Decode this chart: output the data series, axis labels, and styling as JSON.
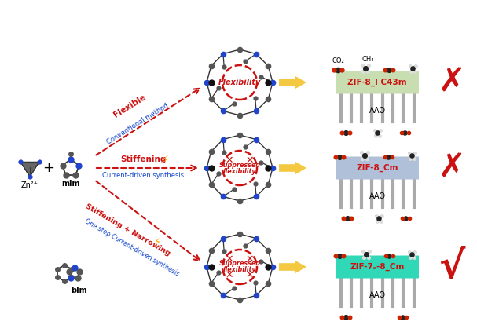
{
  "background": "#ffffff",
  "row1_label": "ZIF-8_I C43m",
  "row2_label": "ZIF-8_Cm",
  "row3_label": "ZIF-7ₓ-8_Cm",
  "row1_color": "#c8ddb0",
  "row2_color": "#b0c0d8",
  "row3_color": "#30d8b8",
  "arrow_fill": "#f5c842",
  "zn_label": "Zn²⁺",
  "mlm_label": "mlm",
  "blm_label": "blm",
  "aao_label": "AAO",
  "co2_label": "CO₂",
  "ch4_label": "CH₄",
  "flexibility_label": "Flexibility",
  "suppressed_label1": "Suppressed",
  "suppressed_label2": "flexibility",
  "flexible_text": "Flexible",
  "conventional_text": "Conventional method",
  "stiffening_text": "Stiffening",
  "current_driven_text": "Current-driven synthesis",
  "stiffening_narrowing_text": "Stiffening + Narrowing",
  "one_step_text": "One step Current-driven synthesis",
  "red": "#cc1111",
  "blue": "#1144cc",
  "pillar_color": "#aaaaaa",
  "bond_color": "#333333",
  "n_color": "#2244cc",
  "c_color": "#555555",
  "o_color": "#cc2200",
  "h_color": "#cccccc",
  "zn_node_color": "#777777"
}
